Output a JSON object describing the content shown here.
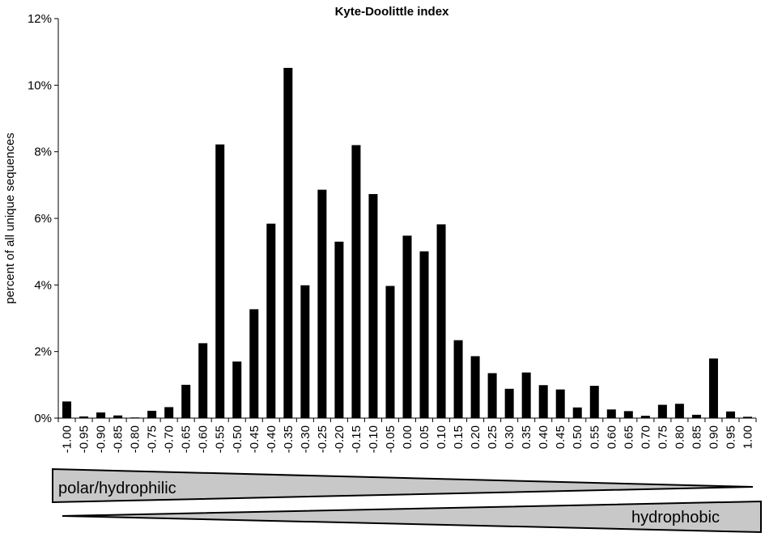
{
  "chart_data": {
    "type": "bar",
    "title": "Kyte-Doolittle index",
    "ylabel": "percent of all unique sequences",
    "xlabel": "",
    "ylim": [
      0,
      12
    ],
    "yticks": [
      "0%",
      "2%",
      "4%",
      "6%",
      "8%",
      "10%",
      "12%"
    ],
    "grid": false,
    "legend": "none",
    "bar_color": "#000000",
    "categories": [
      "-1.00",
      "-0.95",
      "-0.90",
      "-0.85",
      "-0.80",
      "-0.75",
      "-0.70",
      "-0.65",
      "-0.60",
      "-0.55",
      "-0.50",
      "-0.45",
      "-0.40",
      "-0.35",
      "-0.30",
      "-0.25",
      "-0.20",
      "-0.15",
      "-0.10",
      "-0.05",
      "0.00",
      "0.05",
      "0.10",
      "0.15",
      "0.20",
      "0.25",
      "0.30",
      "0.35",
      "0.40",
      "0.45",
      "0.50",
      "0.55",
      "0.60",
      "0.65",
      "0.70",
      "0.75",
      "0.80",
      "0.85",
      "0.90",
      "0.95",
      "1.00"
    ],
    "values": [
      0.5,
      0.05,
      0.17,
      0.08,
      0.02,
      0.22,
      0.33,
      1.0,
      2.25,
      8.22,
      1.7,
      3.27,
      5.84,
      10.52,
      3.99,
      6.86,
      5.3,
      8.2,
      6.73,
      3.97,
      5.48,
      5.01,
      5.82,
      2.34,
      1.86,
      1.35,
      0.88,
      1.37,
      0.99,
      0.86,
      0.32,
      0.97,
      0.26,
      0.21,
      0.07,
      0.4,
      0.43,
      0.1,
      1.79,
      0.2,
      0.04
    ]
  },
  "annotations": {
    "polar_label": "polar/hydrophilic",
    "hydrophobic_label": "hydrophobic",
    "wedge_fill": "#c8c8c8"
  }
}
